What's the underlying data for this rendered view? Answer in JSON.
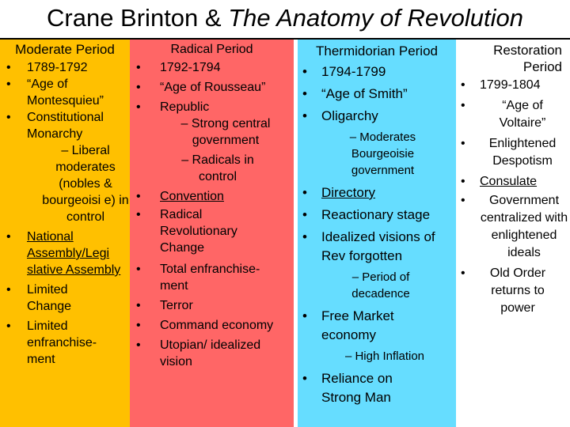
{
  "title": {
    "prefix": "Crane Brinton & ",
    "italic": "The Anatomy of Revolution"
  },
  "colors": {
    "moderate": "#ffc000",
    "radical": "#ff6666",
    "thermidor": "#66ddff",
    "restoration": "#ffffff"
  },
  "moderate": {
    "heading": "Moderate Period",
    "items": [
      "1789-1792",
      "“Age of Montesquieu”",
      "Constitutional Monarchy",
      "– Liberal moderates (nobles & bourgeoisi e) in control",
      "National Assembly/Legi slative Assembly",
      "Limited Change",
      "Limited enfranchise-ment"
    ]
  },
  "radical": {
    "heading": "Radical Period",
    "items": [
      "1792-1794",
      "“Age of Rousseau”",
      "Republic",
      "– Strong central government",
      "– Radicals in control",
      "Convention",
      "Radical Revolutionary Change",
      "Total enfranchise-ment",
      "Terror",
      "Command economy",
      "Utopian/ idealized vision"
    ]
  },
  "thermidor": {
    "heading": "Thermidorian Period",
    "items": [
      "1794-1799",
      "“Age of Smith”",
      "Oligarchy",
      "– Moderates Bourgeoisie government",
      "Directory",
      "Reactionary stage",
      "Idealized visions of Rev forgotten",
      "– Period of decadence",
      "Free Market economy",
      "– High Inflation",
      "Reliance on Strong Man"
    ]
  },
  "restoration": {
    "heading": "Restoration Period",
    "items": [
      "1799-1804",
      "“Age of Voltaire”",
      "Enlightened Despotism",
      "Consulate",
      "Government centralized with enlightened ideals",
      "Old Order returns to power"
    ]
  }
}
